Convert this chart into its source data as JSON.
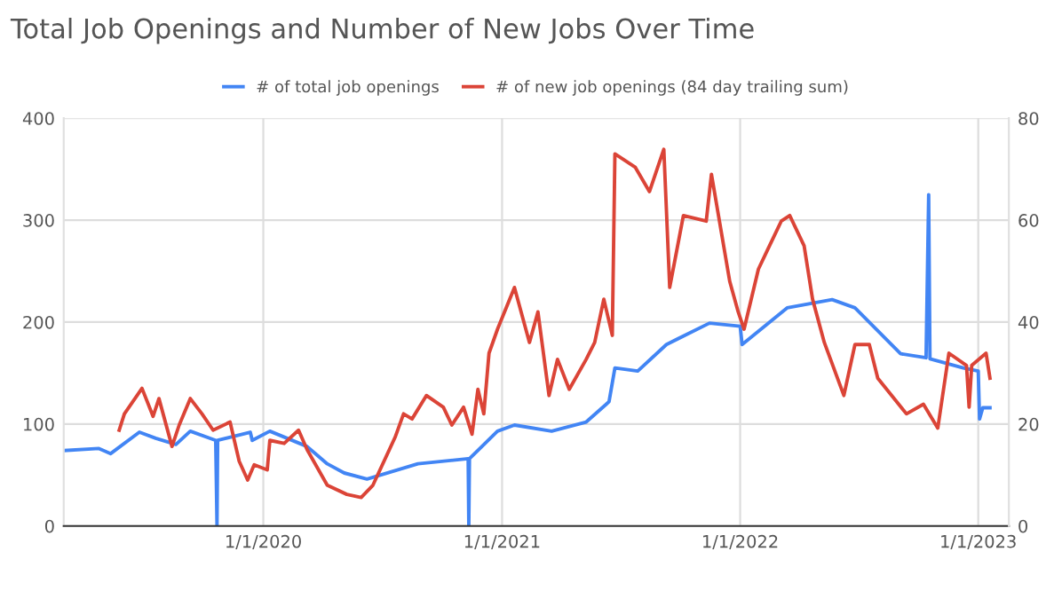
{
  "chart_data": {
    "type": "line",
    "title": "Total Job Openings and Number of New Jobs Over Time",
    "xlim": [
      "2019-03-01",
      "2023-02-17"
    ],
    "xticks": [
      {
        "value": "2020-01-01",
        "label": "1/1/2020"
      },
      {
        "value": "2021-01-01",
        "label": "1/1/2021"
      },
      {
        "value": "2022-01-01",
        "label": "1/1/2022"
      },
      {
        "value": "2023-01-01",
        "label": "1/1/2023"
      }
    ],
    "ylim": [
      0,
      400
    ],
    "yticks": [
      0,
      100,
      200,
      300,
      400
    ],
    "y2lim": [
      0,
      80
    ],
    "y2ticks": [
      0,
      20,
      40,
      60,
      80
    ],
    "grid": true,
    "legend": "top",
    "marker": "none",
    "line_style": "solid",
    "series": [
      {
        "name": "# of total job openings",
        "color": "#4285f4",
        "axis": "y",
        "x": [
          "2019-03-01",
          "2019-04-24",
          "2019-05-12",
          "2019-06-25",
          "2019-07-20",
          "2019-08-20",
          "2019-09-11",
          "2019-10-20",
          "2019-10-22",
          "2019-10-23",
          "2019-12-12",
          "2019-12-15",
          "2020-01-11",
          "2020-03-08",
          "2020-04-08",
          "2020-05-04",
          "2020-06-08",
          "2020-08-25",
          "2020-11-10",
          "2020-11-11",
          "2020-11-12",
          "2020-12-25",
          "2021-01-20",
          "2021-03-18",
          "2021-05-10",
          "2021-06-09",
          "2021-06-14",
          "2021-06-23",
          "2021-07-28",
          "2021-09-10",
          "2021-11-15",
          "2022-01-01",
          "2022-01-04",
          "2022-03-14",
          "2022-05-22",
          "2022-06-26",
          "2022-09-04",
          "2022-10-13",
          "2022-10-17",
          "2022-10-19",
          "2022-12-09",
          "2023-01-01",
          "2023-01-03",
          "2023-01-08",
          "2023-01-19"
        ],
        "values": [
          74,
          76,
          71,
          92,
          86,
          80,
          93,
          84,
          0,
          84,
          92,
          84,
          93,
          78,
          61,
          52,
          46,
          61,
          66,
          0,
          66,
          93,
          99,
          93,
          102,
          119,
          122,
          155,
          152,
          178,
          199,
          196,
          178,
          214,
          222,
          214,
          169,
          165,
          325,
          164,
          155,
          152,
          105,
          116,
          116
        ]
      },
      {
        "name": "# of new job openings (84 day trailing sum)",
        "color": "#db4437",
        "axis": "y2",
        "x": [
          "2019-05-25",
          "2019-06-02",
          "2019-06-29",
          "2019-07-16",
          "2019-07-25",
          "2019-08-14",
          "2019-08-25",
          "2019-09-11",
          "2019-09-29",
          "2019-10-16",
          "2019-11-11",
          "2019-11-25",
          "2019-12-08",
          "2019-12-18",
          "2020-01-07",
          "2020-01-11",
          "2020-02-02",
          "2020-02-24",
          "2020-03-08",
          "2020-04-08",
          "2020-05-08",
          "2020-05-30",
          "2020-06-17",
          "2020-07-21",
          "2020-08-03",
          "2020-08-16",
          "2020-09-07",
          "2020-10-03",
          "2020-10-16",
          "2020-11-03",
          "2020-11-16",
          "2020-11-25",
          "2020-12-04",
          "2020-12-12",
          "2020-12-25",
          "2021-01-20",
          "2021-02-12",
          "2021-02-25",
          "2021-03-14",
          "2021-03-27",
          "2021-04-14",
          "2021-05-10",
          "2021-05-23",
          "2021-06-06",
          "2021-06-19",
          "2021-06-23",
          "2021-07-24",
          "2021-08-15",
          "2021-09-06",
          "2021-09-15",
          "2021-10-06",
          "2021-11-10",
          "2021-11-18",
          "2021-12-16",
          "2021-12-29",
          "2022-01-07",
          "2022-01-29",
          "2022-02-11",
          "2022-03-05",
          "2022-03-18",
          "2022-04-09",
          "2022-04-22",
          "2022-05-10",
          "2022-06-09",
          "2022-06-26",
          "2022-07-18",
          "2022-07-31",
          "2022-09-13",
          "2022-10-09",
          "2022-10-31",
          "2022-11-17",
          "2022-12-14",
          "2022-12-18",
          "2022-12-22",
          "2023-01-13",
          "2023-01-19"
        ],
        "values": [
          18.8,
          22,
          27,
          21.5,
          25,
          15.6,
          19.8,
          25,
          22,
          18.8,
          20.4,
          12.7,
          9,
          12,
          11,
          16.8,
          16.2,
          18.8,
          15,
          8,
          6.2,
          5.6,
          8,
          17.4,
          22,
          21,
          25.6,
          23.3,
          19.8,
          23.3,
          18,
          26.8,
          22,
          33.9,
          38.6,
          46.8,
          36,
          42,
          25.6,
          32.7,
          26.8,
          32.7,
          36,
          44.5,
          37.4,
          73,
          70.4,
          65.6,
          73.9,
          46.8,
          60.9,
          59.8,
          69,
          48,
          42,
          38.6,
          50.4,
          53.9,
          59.8,
          60.9,
          55,
          44.5,
          36,
          25.6,
          35.6,
          35.6,
          29,
          22,
          23.9,
          19.2,
          33.9,
          31.5,
          23.3,
          31.5,
          33.9,
          29
        ]
      }
    ]
  }
}
